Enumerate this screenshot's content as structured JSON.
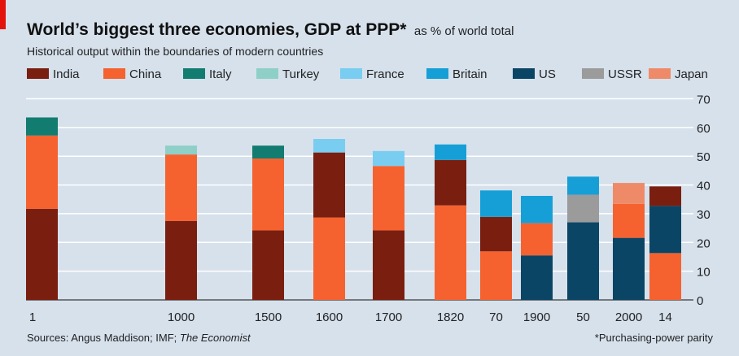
{
  "header": {
    "title": "World’s biggest three economies, GDP at PPP*",
    "unit": "as % of world total",
    "subtitle": "Historical output within the boundaries of modern countries"
  },
  "footer": {
    "sources_prefix": "Sources: Angus Maddison; IMF; ",
    "sources_italic": "The Economist",
    "note": "*Purchasing-power parity"
  },
  "colors": {
    "India": "#7a1f10",
    "China": "#f5622f",
    "Italy": "#127c70",
    "Turkey": "#8ecfc8",
    "France": "#78cdf0",
    "Britain": "#169fd6",
    "US": "#0b4565",
    "USSR": "#9b9b9b",
    "Japan": "#ef8a68",
    "accent_tag": "#e3120b",
    "background": "#d6e1ec"
  },
  "chart_data": {
    "type": "bar",
    "stacked": true,
    "title": "World’s biggest three economies, GDP at PPP*",
    "ylabel": "as % of world total",
    "ylim": [
      0,
      70
    ],
    "yticks": [
      0,
      10,
      20,
      30,
      40,
      50,
      60,
      70
    ],
    "grid": true,
    "legend": [
      "India",
      "China",
      "Italy",
      "Turkey",
      "France",
      "Britain",
      "US",
      "USSR",
      "Japan"
    ],
    "legend_position": "top",
    "categories": [
      "1",
      "1000",
      "1500",
      "1600",
      "1700",
      "1820",
      "70",
      "1900",
      "50",
      "2000",
      "14"
    ],
    "stacks": [
      [
        {
          "name": "India",
          "value": 31.7
        },
        {
          "name": "China",
          "value": 25.5
        },
        {
          "name": "Italy",
          "value": 6.3
        }
      ],
      [
        {
          "name": "India",
          "value": 27.5
        },
        {
          "name": "China",
          "value": 23.1
        },
        {
          "name": "Turkey",
          "value": 3.1
        }
      ],
      [
        {
          "name": "India",
          "value": 24.2
        },
        {
          "name": "China",
          "value": 25.0
        },
        {
          "name": "Italy",
          "value": 4.5
        }
      ],
      [
        {
          "name": "China",
          "value": 28.7
        },
        {
          "name": "India",
          "value": 22.6
        },
        {
          "name": "France",
          "value": 4.7
        }
      ],
      [
        {
          "name": "India",
          "value": 24.2
        },
        {
          "name": "China",
          "value": 22.4
        },
        {
          "name": "France",
          "value": 5.2
        }
      ],
      [
        {
          "name": "China",
          "value": 32.9
        },
        {
          "name": "India",
          "value": 15.8
        },
        {
          "name": "Britain",
          "value": 5.4
        }
      ],
      [
        {
          "name": "China",
          "value": 16.9
        },
        {
          "name": "India",
          "value": 12.0
        },
        {
          "name": "Britain",
          "value": 9.2
        }
      ],
      [
        {
          "name": "US",
          "value": 15.5
        },
        {
          "name": "China",
          "value": 11.2
        },
        {
          "name": "Britain",
          "value": 9.5
        }
      ],
      [
        {
          "name": "US",
          "value": 27.0
        },
        {
          "name": "USSR",
          "value": 9.6
        },
        {
          "name": "Britain",
          "value": 6.3
        }
      ],
      [
        {
          "name": "US",
          "value": 21.6
        },
        {
          "name": "China",
          "value": 11.8
        },
        {
          "name": "Japan",
          "value": 7.3
        }
      ],
      [
        {
          "name": "China",
          "value": 16.3
        },
        {
          "name": "US",
          "value": 16.4
        },
        {
          "name": "India",
          "value": 6.8
        }
      ]
    ]
  }
}
